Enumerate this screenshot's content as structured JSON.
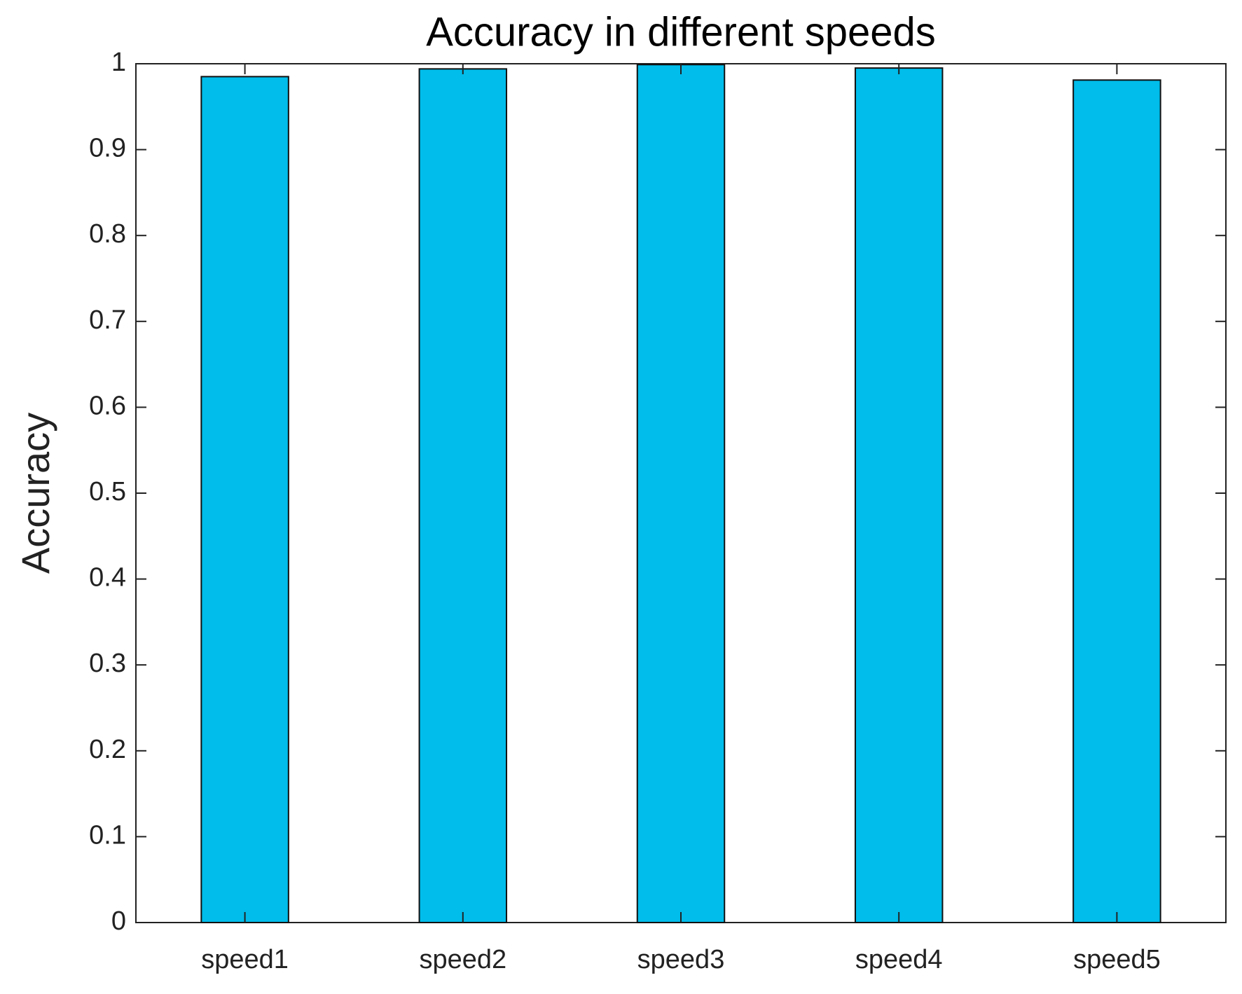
{
  "chart_data": {
    "type": "bar",
    "title": "Accuracy in different speeds",
    "y_label": "Accuracy",
    "categories": [
      "speed1",
      "speed2",
      "speed3",
      "speed4",
      "speed5"
    ],
    "values": [
      0.985,
      0.994,
      0.999,
      0.995,
      0.981
    ],
    "color": "#00bdeb",
    "ylim": [
      0,
      1
    ],
    "yticks": [
      0,
      0.1,
      0.2,
      0.3,
      0.4,
      0.5,
      0.6,
      0.7,
      0.8,
      0.9,
      1
    ],
    "grid": false
  }
}
